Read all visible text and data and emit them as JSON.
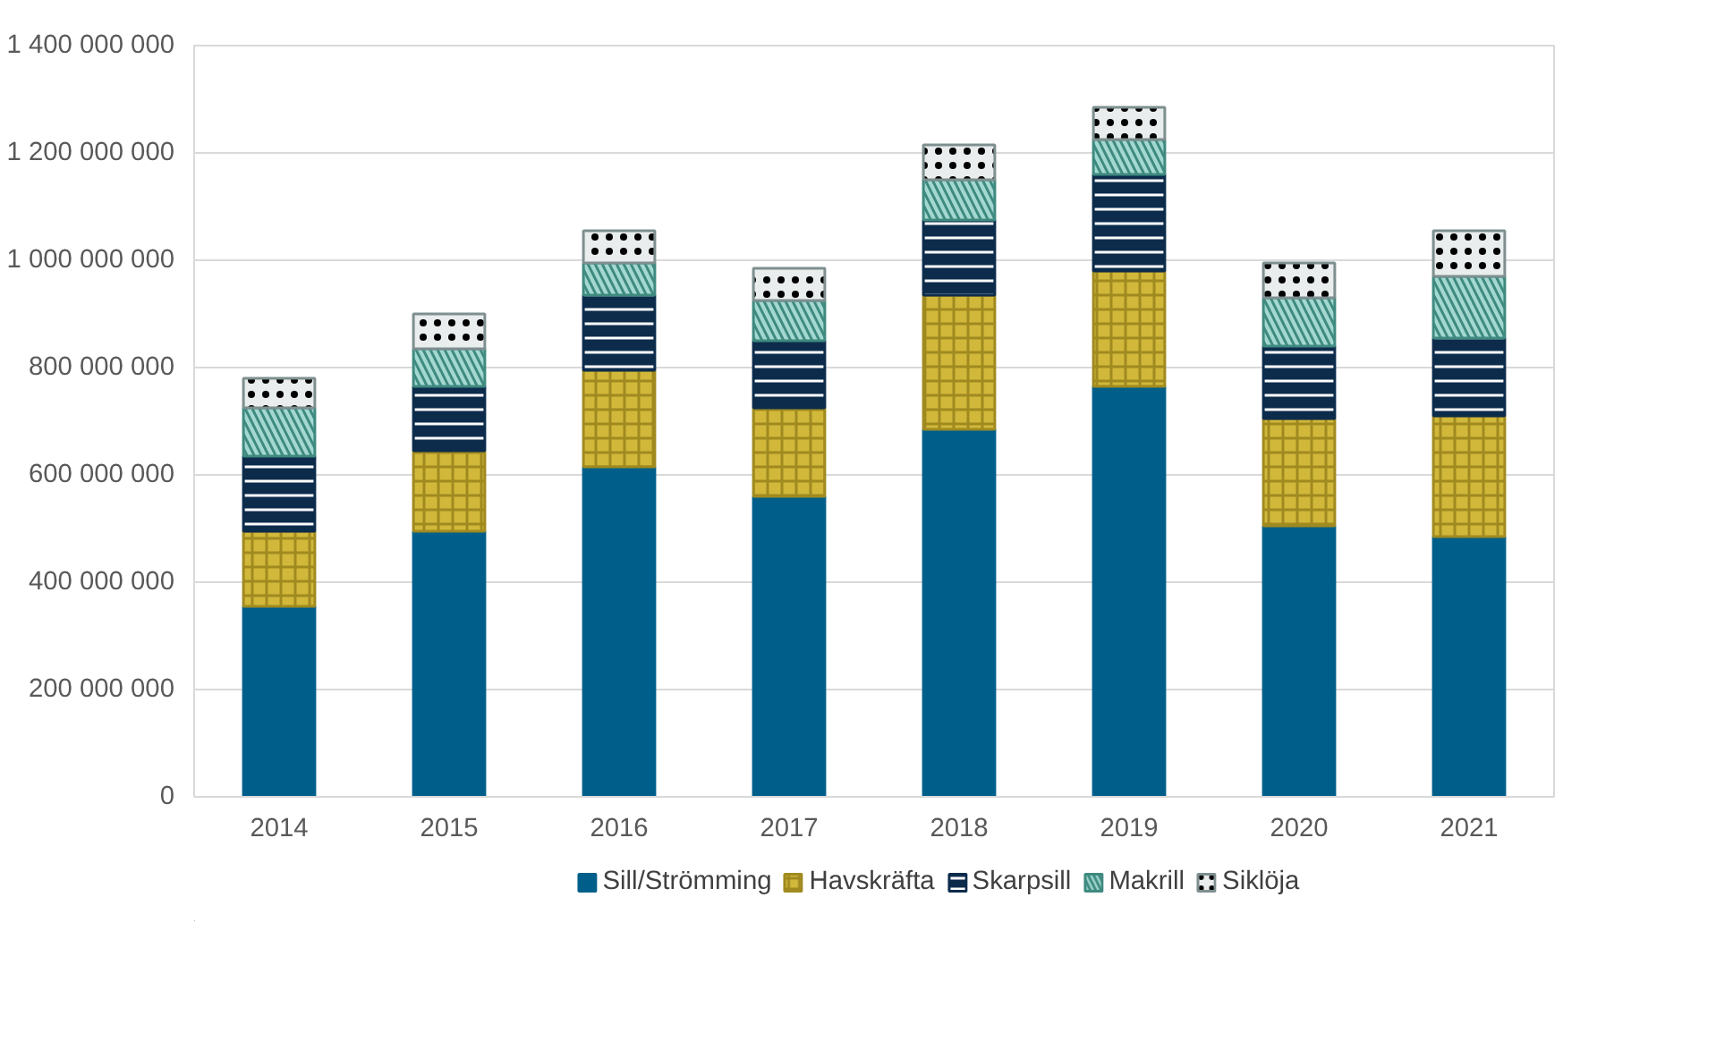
{
  "chart_data": {
    "type": "bar",
    "stacked": true,
    "categories": [
      "2014",
      "2015",
      "2016",
      "2017",
      "2018",
      "2019",
      "2020",
      "2021"
    ],
    "series": [
      {
        "name": "Sill/Strömming",
        "color": "#005f8a",
        "values": [
          355000000,
          495000000,
          615000000,
          560000000,
          685000000,
          765000000,
          505000000,
          485000000
        ]
      },
      {
        "name": "Havskräfta",
        "color": "#d1b83a",
        "values": [
          140000000,
          150000000,
          180000000,
          165000000,
          250000000,
          215000000,
          200000000,
          225000000
        ]
      },
      {
        "name": "Skarpsill",
        "color": "#0d2c4c",
        "values": [
          140000000,
          120000000,
          140000000,
          125000000,
          140000000,
          180000000,
          135000000,
          145000000
        ]
      },
      {
        "name": "Makrill",
        "color": "#a3d8d0",
        "values": [
          90000000,
          70000000,
          60000000,
          75000000,
          75000000,
          65000000,
          90000000,
          115000000
        ]
      },
      {
        "name": "Siklöja",
        "color": "#e9eded",
        "values": [
          55000000,
          65000000,
          60000000,
          60000000,
          65000000,
          60000000,
          65000000,
          85000000
        ]
      }
    ],
    "ylim": [
      0,
      1400000000
    ],
    "yticks": [
      0,
      {
        "value": 200000000,
        "label": "200 000 000"
      },
      {
        "value": 400000000,
        "label": "400 000 000"
      },
      {
        "value": 600000000,
        "label": "600 000 000"
      },
      {
        "value": 800000000,
        "label": "800 000 000"
      },
      {
        "value": 1000000000,
        "label": "1 000 000 000"
      },
      {
        "value": 1200000000,
        "label": "1 200 000 000"
      },
      {
        "value": 1400000000,
        "label": "1 400 000 000"
      }
    ],
    "grid": "y",
    "legend": "bottom"
  }
}
